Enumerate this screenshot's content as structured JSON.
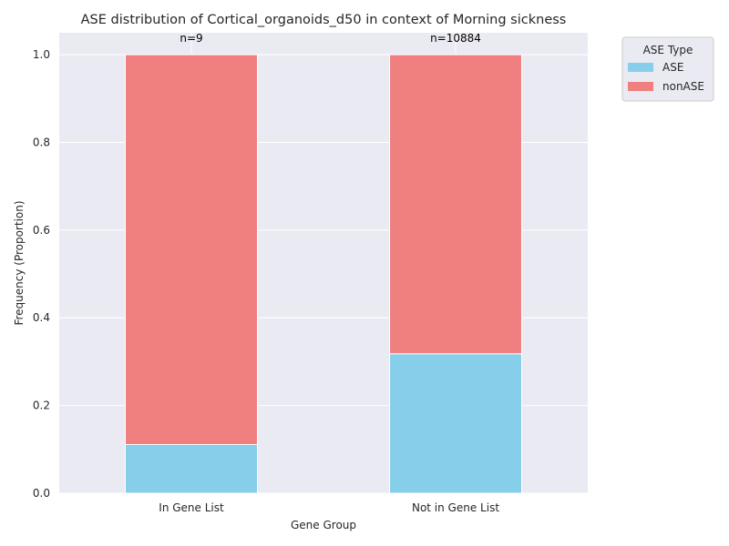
{
  "chart_data": {
    "type": "bar",
    "stacked": true,
    "title": "ASE distribution of Cortical_organoids_d50 in context of Morning sickness",
    "xlabel": "Gene Group",
    "ylabel": "Frequency (Proportion)",
    "categories": [
      "In Gene List",
      "Not in Gene List"
    ],
    "series": [
      {
        "name": "ASE",
        "values": [
          0.111,
          0.318
        ],
        "color": "#87ceeb"
      },
      {
        "name": "nonASE",
        "values": [
          0.889,
          0.682
        ],
        "color": "#f08080"
      }
    ],
    "annotations": [
      "n=9",
      "n=10884"
    ],
    "ylim": [
      0,
      1.05
    ],
    "yticks": [
      "0.0",
      "0.2",
      "0.4",
      "0.6",
      "0.8",
      "1.0"
    ],
    "grid": true,
    "legend": {
      "title": "ASE Type",
      "placement": "outside-top-right"
    }
  }
}
